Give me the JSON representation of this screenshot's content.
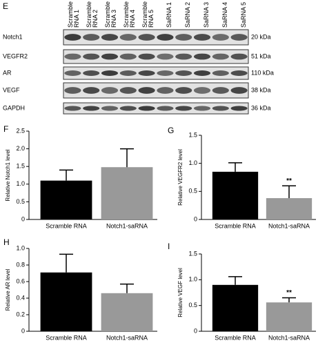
{
  "blot": {
    "panel": "E",
    "lanes": [
      "Scramble RNA 1",
      "Scramble RNA 2",
      "Scramble RNA 3",
      "Scramble RNA 4",
      "Scramble RNA 5",
      "SaRNA 1",
      "SaRNA 2",
      "SaRNA 3",
      "SaRNA 4",
      "SaRNA 5"
    ],
    "rows": [
      {
        "name": "Notch1",
        "size": "20 kDa"
      },
      {
        "name": "VEGFR2",
        "size": "51 kDa"
      },
      {
        "name": "AR",
        "size": "110 kDa"
      },
      {
        "name": "VEGF",
        "size": "38 kDa"
      },
      {
        "name": "GAPDH",
        "size": "36 kDa"
      }
    ]
  },
  "chart_data": [
    {
      "type": "bar",
      "panel": "F",
      "y_label": "Relative Notch1 level",
      "categories": [
        "Scramble RNA",
        "Notch1-saRNA"
      ],
      "values": [
        1.1,
        1.48
      ],
      "errors": [
        0.3,
        0.52
      ],
      "colors": [
        "#000000",
        "#999999"
      ],
      "ylim": [
        0,
        2.5
      ],
      "yticks": [
        0,
        0.5,
        {
          "value": 1,
          "label": "1.0"
        },
        1.5,
        {
          "value": 2,
          "label": "2.0"
        },
        2.5
      ],
      "annotations": []
    },
    {
      "type": "bar",
      "panel": "G",
      "y_label": "Relative VEGFR2 level",
      "categories": [
        "Scramble RNA",
        "Notch1-saRNA"
      ],
      "values": [
        0.85,
        0.38
      ],
      "errors": [
        0.16,
        0.22
      ],
      "colors": [
        "#000000",
        "#999999"
      ],
      "ylim": [
        0,
        1.5
      ],
      "yticks": [
        0,
        0.5,
        {
          "value": 1,
          "label": "1.0"
        },
        1.5
      ],
      "annotations": [
        "**"
      ]
    },
    {
      "type": "bar",
      "panel": "H",
      "y_label": "Relative AR level",
      "categories": [
        "Scramble RNA",
        "Notch1-saRNA"
      ],
      "values": [
        0.71,
        0.46
      ],
      "errors": [
        0.22,
        0.11
      ],
      "colors": [
        "#000000",
        "#999999"
      ],
      "ylim": [
        0,
        1
      ],
      "yticks": [
        0,
        0.2,
        0.4,
        0.6,
        0.8,
        {
          "value": 1,
          "label": "1.0"
        }
      ],
      "annotations": []
    },
    {
      "type": "bar",
      "panel": "I",
      "y_label": "Relative VEGF level",
      "categories": [
        "Scramble RNA",
        "Notch1-saRNA"
      ],
      "values": [
        0.9,
        0.56
      ],
      "errors": [
        0.16,
        0.09
      ],
      "colors": [
        "#000000",
        "#999999"
      ],
      "ylim": [
        0,
        1.5
      ],
      "yticks": [
        0,
        0.5,
        {
          "value": 1,
          "label": "1.0"
        },
        1.5
      ],
      "annotations": [
        "**"
      ]
    }
  ]
}
